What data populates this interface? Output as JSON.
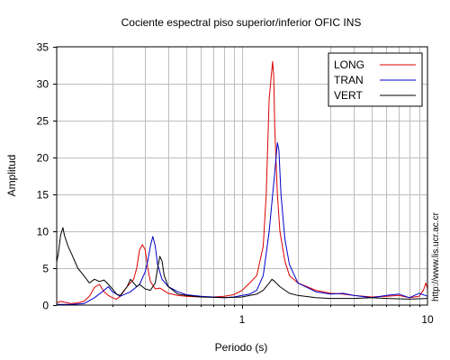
{
  "chart_data": {
    "type": "line",
    "title": "Cociente espectral piso superior/inferior  OFIC INS",
    "xlabel": "Periodo (s)",
    "ylabel": "Amplitud",
    "xscale": "log",
    "xlim": [
      0.1,
      10
    ],
    "ylim": [
      0,
      35
    ],
    "grid": true,
    "legend_position": "top-right",
    "x_tick_labels": [
      "1",
      "10"
    ],
    "y_tick_labels": [
      "0",
      "5",
      "10",
      "15",
      "20",
      "25",
      "30",
      "35"
    ],
    "y_ticks": [
      0,
      5,
      10,
      15,
      20,
      25,
      30,
      35
    ],
    "series": [
      {
        "name": "LONG",
        "color": "#dd0000",
        "points": [
          [
            0.1,
            0.3
          ],
          [
            0.105,
            0.5
          ],
          [
            0.11,
            0.4
          ],
          [
            0.12,
            0.2
          ],
          [
            0.13,
            0.3
          ],
          [
            0.14,
            0.5
          ],
          [
            0.15,
            1.2
          ],
          [
            0.16,
            2.4
          ],
          [
            0.17,
            2.8
          ],
          [
            0.18,
            1.8
          ],
          [
            0.19,
            1.3
          ],
          [
            0.2,
            1.0
          ],
          [
            0.21,
            0.8
          ],
          [
            0.22,
            1.2
          ],
          [
            0.24,
            2.5
          ],
          [
            0.26,
            3.5
          ],
          [
            0.27,
            5.0
          ],
          [
            0.28,
            7.5
          ],
          [
            0.29,
            8.2
          ],
          [
            0.3,
            7.5
          ],
          [
            0.31,
            5.0
          ],
          [
            0.32,
            3.2
          ],
          [
            0.34,
            2.2
          ],
          [
            0.36,
            2.3
          ],
          [
            0.4,
            1.6
          ],
          [
            0.45,
            1.3
          ],
          [
            0.5,
            1.2
          ],
          [
            0.6,
            1.1
          ],
          [
            0.7,
            1.1
          ],
          [
            0.8,
            1.2
          ],
          [
            0.9,
            1.4
          ],
          [
            1.0,
            2.0
          ],
          [
            1.1,
            3.0
          ],
          [
            1.2,
            4.0
          ],
          [
            1.3,
            8.0
          ],
          [
            1.35,
            15.0
          ],
          [
            1.4,
            28.0
          ],
          [
            1.43,
            30.5
          ],
          [
            1.46,
            33.0
          ],
          [
            1.48,
            31.0
          ],
          [
            1.5,
            24.0
          ],
          [
            1.55,
            15.0
          ],
          [
            1.6,
            10.0
          ],
          [
            1.7,
            6.0
          ],
          [
            1.8,
            4.0
          ],
          [
            2.0,
            3.0
          ],
          [
            2.5,
            2.0
          ],
          [
            3.0,
            1.6
          ],
          [
            3.5,
            1.5
          ],
          [
            4.0,
            1.3
          ],
          [
            5.0,
            1.1
          ],
          [
            6.0,
            1.2
          ],
          [
            7.0,
            1.3
          ],
          [
            8.0,
            1.0
          ],
          [
            9.0,
            1.2
          ],
          [
            9.5,
            2.0
          ],
          [
            9.8,
            3.0
          ],
          [
            10.0,
            2.2
          ]
        ]
      },
      {
        "name": "TRAN",
        "color": "#0000cc",
        "points": [
          [
            0.1,
            0.1
          ],
          [
            0.12,
            0.1
          ],
          [
            0.14,
            0.2
          ],
          [
            0.16,
            1.0
          ],
          [
            0.18,
            2.0
          ],
          [
            0.19,
            2.5
          ],
          [
            0.2,
            1.8
          ],
          [
            0.22,
            1.2
          ],
          [
            0.25,
            1.8
          ],
          [
            0.28,
            2.8
          ],
          [
            0.3,
            4.5
          ],
          [
            0.31,
            6.0
          ],
          [
            0.32,
            8.0
          ],
          [
            0.33,
            9.3
          ],
          [
            0.34,
            8.0
          ],
          [
            0.35,
            5.5
          ],
          [
            0.37,
            3.5
          ],
          [
            0.4,
            2.5
          ],
          [
            0.45,
            1.8
          ],
          [
            0.5,
            1.4
          ],
          [
            0.6,
            1.2
          ],
          [
            0.7,
            1.1
          ],
          [
            0.8,
            1.0
          ],
          [
            0.9,
            1.1
          ],
          [
            1.0,
            1.3
          ],
          [
            1.1,
            1.5
          ],
          [
            1.2,
            2.0
          ],
          [
            1.3,
            4.0
          ],
          [
            1.4,
            10.0
          ],
          [
            1.45,
            14.0
          ],
          [
            1.5,
            18.0
          ],
          [
            1.55,
            22.0
          ],
          [
            1.58,
            21.0
          ],
          [
            1.62,
            15.0
          ],
          [
            1.7,
            9.0
          ],
          [
            1.8,
            5.5
          ],
          [
            2.0,
            3.0
          ],
          [
            2.5,
            1.8
          ],
          [
            3.0,
            1.5
          ],
          [
            3.5,
            1.6
          ],
          [
            4.0,
            1.3
          ],
          [
            5.0,
            1.0
          ],
          [
            6.0,
            1.3
          ],
          [
            7.0,
            1.5
          ],
          [
            8.0,
            1.0
          ],
          [
            9.0,
            1.6
          ],
          [
            10.0,
            1.2
          ]
        ]
      },
      {
        "name": "VERT",
        "color": "#000000",
        "points": [
          [
            0.1,
            5.8
          ],
          [
            0.102,
            7.0
          ],
          [
            0.105,
            9.5
          ],
          [
            0.108,
            10.5
          ],
          [
            0.11,
            9.5
          ],
          [
            0.115,
            8.0
          ],
          [
            0.12,
            7.0
          ],
          [
            0.13,
            5.0
          ],
          [
            0.14,
            4.0
          ],
          [
            0.15,
            3.0
          ],
          [
            0.16,
            3.5
          ],
          [
            0.17,
            3.2
          ],
          [
            0.18,
            3.4
          ],
          [
            0.19,
            2.8
          ],
          [
            0.2,
            2.2
          ],
          [
            0.21,
            1.5
          ],
          [
            0.22,
            1.3
          ],
          [
            0.24,
            2.5
          ],
          [
            0.25,
            3.5
          ],
          [
            0.26,
            3.0
          ],
          [
            0.27,
            2.5
          ],
          [
            0.28,
            2.8
          ],
          [
            0.3,
            2.2
          ],
          [
            0.32,
            2.0
          ],
          [
            0.34,
            3.0
          ],
          [
            0.35,
            5.0
          ],
          [
            0.36,
            6.6
          ],
          [
            0.37,
            6.0
          ],
          [
            0.38,
            4.0
          ],
          [
            0.4,
            2.5
          ],
          [
            0.45,
            1.5
          ],
          [
            0.5,
            1.3
          ],
          [
            0.6,
            1.1
          ],
          [
            0.8,
            1.0
          ],
          [
            1.0,
            1.1
          ],
          [
            1.1,
            1.3
          ],
          [
            1.2,
            1.5
          ],
          [
            1.3,
            2.0
          ],
          [
            1.4,
            3.0
          ],
          [
            1.45,
            3.5
          ],
          [
            1.5,
            3.2
          ],
          [
            1.6,
            2.5
          ],
          [
            1.8,
            1.6
          ],
          [
            2.0,
            1.3
          ],
          [
            2.5,
            1.0
          ],
          [
            3.0,
            0.9
          ],
          [
            4.0,
            0.9
          ],
          [
            5.0,
            1.0
          ],
          [
            6.0,
            0.9
          ],
          [
            8.0,
            0.8
          ],
          [
            10.0,
            0.9
          ]
        ]
      }
    ],
    "legend": [
      "LONG",
      "TRAN",
      "VERT"
    ]
  },
  "side_text": "http://www.lis.ucr.ac.cr"
}
